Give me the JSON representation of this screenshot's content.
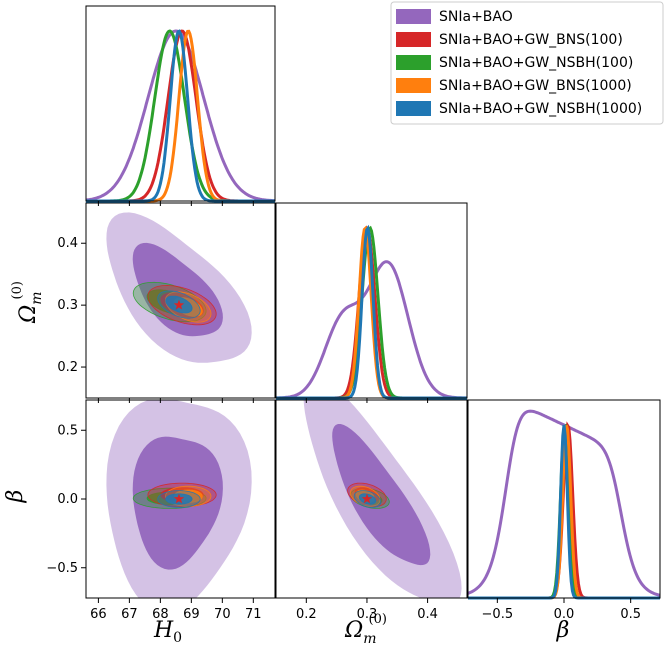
{
  "chart_data": {
    "type": "corner",
    "title": "",
    "parameters": [
      {
        "key": "H0",
        "label_main": "H",
        "label_sub": "0",
        "ticks": [
          "66",
          "67",
          "68",
          "69",
          "70",
          "71"
        ],
        "range": [
          65.6,
          71.7
        ]
      },
      {
        "key": "Om",
        "label_main": "Ω",
        "label_sub": "m",
        "label_sup": "(0)",
        "ticks": [
          "0.2",
          "0.3",
          "0.4"
        ],
        "range": [
          0.15,
          0.465
        ]
      },
      {
        "key": "beta",
        "label_main": "β",
        "ticks": [
          "−0.5",
          "0.0",
          "0.5"
        ],
        "range": [
          -0.72,
          0.72
        ]
      }
    ],
    "y_tick_labels": {
      "Om": [
        "0.2",
        "0.3",
        "0.4"
      ],
      "beta": [
        "−0.5",
        "0.0",
        "0.5"
      ]
    },
    "legend": {
      "location": "upper right",
      "entries": [
        {
          "name": "SNIa+BAO",
          "color": "#9467bd"
        },
        {
          "name": "SNIa+BAO+GW_BNS(100)",
          "color": "#d62728"
        },
        {
          "name": "SNIa+BAO+GW_NSBH(100)",
          "color": "#2ca02c"
        },
        {
          "name": "SNIa+BAO+GW_BNS(1000)",
          "color": "#ff7f0e"
        },
        {
          "name": "SNIa+BAO+GW_NSBH(1000)",
          "color": "#1f77b4"
        }
      ]
    },
    "fiducial": {
      "H0": 68.6,
      "Om": 0.3,
      "beta": 0.0,
      "marker": "star",
      "color": "#d62728"
    },
    "series": [
      {
        "name": "SNIa+BAO",
        "color": "#9467bd",
        "mean": {
          "H0": 68.5,
          "Om": 0.32,
          "beta": 0.0
        },
        "sigma": {
          "H0": 0.9,
          "Om": 0.05,
          "beta": 0.33
        }
      },
      {
        "name": "SNIa+BAO+GW_BNS(100)",
        "color": "#d62728",
        "mean": {
          "H0": 68.7,
          "Om": 0.3,
          "beta": 0.03
        },
        "sigma": {
          "H0": 0.45,
          "Om": 0.013,
          "beta": 0.035
        }
      },
      {
        "name": "SNIa+BAO+GW_NSBH(100)",
        "color": "#2ca02c",
        "mean": {
          "H0": 68.3,
          "Om": 0.305,
          "beta": 0.005
        },
        "sigma": {
          "H0": 0.48,
          "Om": 0.013,
          "beta": 0.03
        }
      },
      {
        "name": "SNIa+BAO+GW_BNS(1000)",
        "color": "#ff7f0e",
        "mean": {
          "H0": 68.9,
          "Om": 0.297,
          "beta": 0.02
        },
        "sigma": {
          "H0": 0.3,
          "Om": 0.01,
          "beta": 0.03
        }
      },
      {
        "name": "SNIa+BAO+GW_NSBH(1000)",
        "color": "#1f77b4",
        "mean": {
          "H0": 68.6,
          "Om": 0.301,
          "beta": 0.0
        },
        "sigma": {
          "H0": 0.28,
          "Om": 0.009,
          "beta": 0.025
        }
      }
    ]
  }
}
